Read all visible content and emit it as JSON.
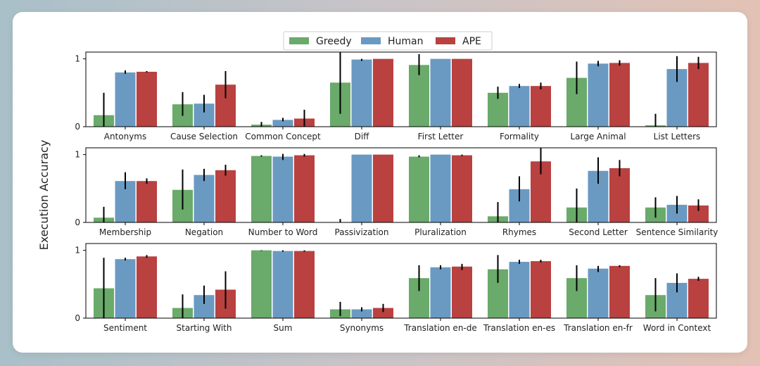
{
  "chart_data": {
    "type": "bar",
    "ylabel": "Execution Accuracy",
    "ylim": [
      0,
      1.1
    ],
    "yticks": [
      "0",
      "1"
    ],
    "legend": {
      "placement": "top-center",
      "entries": [
        {
          "name": "Greedy",
          "color": "#6aaa6a"
        },
        {
          "name": "Human",
          "color": "#6a9ac2"
        },
        {
          "name": "APE",
          "color": "#b94140"
        }
      ]
    },
    "panels": [
      {
        "categories": [
          "Antonyms",
          "Cause Selection",
          "Common Concept",
          "Diff",
          "First Letter",
          "Formality",
          "Large Animal",
          "List Letters"
        ],
        "series": [
          {
            "name": "Greedy",
            "values": [
              0.17,
              0.33,
              0.03,
              0.65,
              0.91,
              0.5,
              0.72,
              0.02
            ],
            "err_low": [
              0.0,
              0.16,
              0.0,
              0.19,
              0.76,
              0.41,
              0.48,
              0.0
            ],
            "err_high": [
              0.5,
              0.51,
              0.07,
              1.1,
              1.07,
              0.59,
              0.96,
              0.19
            ]
          },
          {
            "name": "Human",
            "values": [
              0.8,
              0.34,
              0.1,
              0.99,
              1.0,
              0.6,
              0.93,
              0.85
            ],
            "err_low": [
              0.78,
              0.21,
              0.08,
              0.97,
              1.0,
              0.57,
              0.89,
              0.66
            ],
            "err_high": [
              0.83,
              0.47,
              0.13,
              1.0,
              1.0,
              0.63,
              0.97,
              1.04
            ]
          },
          {
            "name": "APE",
            "values": [
              0.81,
              0.62,
              0.12,
              1.0,
              1.0,
              0.6,
              0.94,
              0.94
            ],
            "err_low": [
              0.8,
              0.42,
              0.0,
              1.0,
              1.0,
              0.55,
              0.9,
              0.85
            ],
            "err_high": [
              0.82,
              0.82,
              0.25,
              1.0,
              1.0,
              0.65,
              0.98,
              1.03
            ]
          }
        ]
      },
      {
        "categories": [
          "Membership",
          "Negation",
          "Number to Word",
          "Passivization",
          "Pluralization",
          "Rhymes",
          "Second Letter",
          "Sentence Similarity"
        ],
        "series": [
          {
            "name": "Greedy",
            "values": [
              0.07,
              0.48,
              0.98,
              0.0,
              0.97,
              0.09,
              0.22,
              0.22
            ],
            "err_low": [
              0.0,
              0.19,
              0.97,
              0.0,
              0.96,
              0.0,
              0.0,
              0.07
            ],
            "err_high": [
              0.23,
              0.78,
              0.99,
              0.05,
              0.99,
              0.3,
              0.5,
              0.37
            ]
          },
          {
            "name": "Human",
            "values": [
              0.61,
              0.7,
              0.97,
              1.0,
              1.0,
              0.49,
              0.76,
              0.26
            ],
            "err_low": [
              0.49,
              0.61,
              0.92,
              1.0,
              1.0,
              0.31,
              0.57,
              0.13
            ],
            "err_high": [
              0.74,
              0.79,
              1.01,
              1.0,
              1.0,
              0.68,
              0.96,
              0.39
            ]
          },
          {
            "name": "APE",
            "values": [
              0.61,
              0.77,
              0.99,
              1.0,
              0.99,
              0.9,
              0.8,
              0.25
            ],
            "err_low": [
              0.57,
              0.69,
              0.97,
              1.0,
              0.98,
              0.71,
              0.68,
              0.17
            ],
            "err_high": [
              0.65,
              0.85,
              1.01,
              1.0,
              1.0,
              1.1,
              0.92,
              0.34
            ]
          }
        ]
      },
      {
        "categories": [
          "Sentiment",
          "Starting With",
          "Sum",
          "Synonyms",
          "Translation en-de",
          "Translation en-es",
          "Translation en-fr",
          "Word in Context"
        ],
        "series": [
          {
            "name": "Greedy",
            "values": [
              0.44,
              0.15,
              1.0,
              0.13,
              0.59,
              0.72,
              0.59,
              0.34
            ],
            "err_low": [
              0.0,
              0.0,
              0.99,
              0.03,
              0.4,
              0.52,
              0.4,
              0.1
            ],
            "err_high": [
              0.89,
              0.35,
              1.0,
              0.24,
              0.78,
              0.93,
              0.78,
              0.59
            ]
          },
          {
            "name": "Human",
            "values": [
              0.87,
              0.34,
              0.99,
              0.13,
              0.75,
              0.83,
              0.73,
              0.52
            ],
            "err_low": [
              0.85,
              0.21,
              0.98,
              0.1,
              0.72,
              0.8,
              0.68,
              0.38
            ],
            "err_high": [
              0.89,
              0.48,
              1.0,
              0.16,
              0.78,
              0.86,
              0.77,
              0.66
            ]
          },
          {
            "name": "APE",
            "values": [
              0.91,
              0.42,
              0.99,
              0.15,
              0.76,
              0.84,
              0.77,
              0.58
            ],
            "err_low": [
              0.89,
              0.14,
              0.98,
              0.09,
              0.71,
              0.82,
              0.75,
              0.55
            ],
            "err_high": [
              0.93,
              0.69,
              1.0,
              0.21,
              0.8,
              0.86,
              0.78,
              0.61
            ]
          }
        ]
      }
    ]
  }
}
